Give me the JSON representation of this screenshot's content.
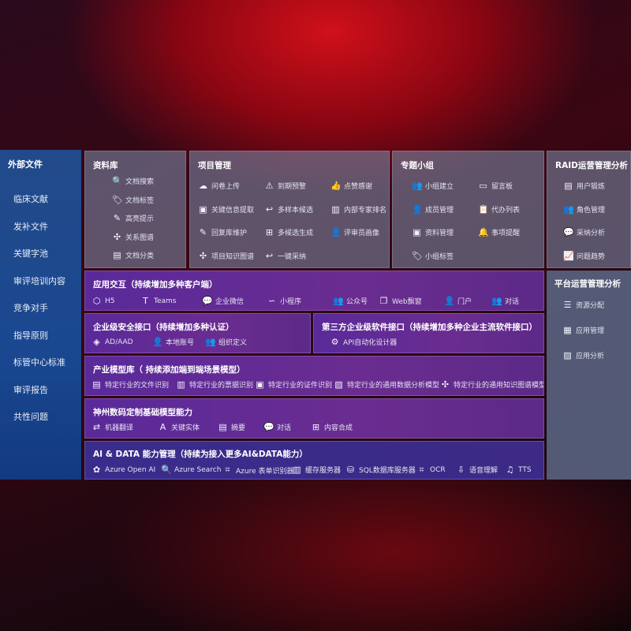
{
  "sidebar": {
    "title": "外部文件",
    "items": [
      "临床文献",
      "发补文件",
      "关键字池",
      "审评培训内容",
      "竞争对手",
      "指导原则",
      "标管中心标准",
      "审评报告",
      "共性问题"
    ]
  },
  "panels": [
    {
      "id": "library",
      "title": "资料库",
      "items": [
        {
          "label": "文档搜索",
          "icon": "document-search-icon",
          "glyph": "🔍"
        },
        {
          "label": "文档标签",
          "icon": "tag-icon",
          "glyph": "🏷"
        },
        {
          "label": "高亮提示",
          "icon": "pen-icon",
          "glyph": "✎"
        },
        {
          "label": "关系图谱",
          "icon": "graph-icon",
          "glyph": "✣"
        },
        {
          "label": "文档分类",
          "icon": "document-stack-icon",
          "glyph": "▤"
        }
      ]
    },
    {
      "id": "project",
      "title": "项目管理",
      "items": [
        {
          "label": "问卷上传",
          "icon": "cloud-upload-icon",
          "glyph": "☁"
        },
        {
          "label": "到期预警",
          "icon": "alarm-icon",
          "glyph": "⚠"
        },
        {
          "label": "点赞感谢",
          "icon": "thumbs-up-icon",
          "glyph": "👍"
        },
        {
          "label": "关键信息提取",
          "icon": "window-icon",
          "glyph": "▣"
        },
        {
          "label": "多样本候选",
          "icon": "reply-icon",
          "glyph": "↩"
        },
        {
          "label": "内部专家排名",
          "icon": "ranking-icon",
          "glyph": "▥"
        },
        {
          "label": "回复库维护",
          "icon": "edit-icon",
          "glyph": "✎"
        },
        {
          "label": "多候选生成",
          "icon": "puzzle-icon",
          "glyph": "⊞"
        },
        {
          "label": "评审员画像",
          "icon": "user-icon",
          "glyph": "👤"
        },
        {
          "label": "项目知识图谱",
          "icon": "graph-icon",
          "glyph": "✣"
        },
        {
          "label": "一键采纳",
          "icon": "reply-icon",
          "glyph": "↩"
        }
      ]
    },
    {
      "id": "group",
      "title": "专题小组",
      "items": [
        {
          "label": "小组建立",
          "icon": "users-icon",
          "glyph": "👥"
        },
        {
          "label": "留言板",
          "icon": "bbs-icon",
          "glyph": "▭"
        },
        {
          "label": "成员管理",
          "icon": "user-add-icon",
          "glyph": "👤"
        },
        {
          "label": "代办列表",
          "icon": "clipboard-icon",
          "glyph": "📋"
        },
        {
          "label": "资料管理",
          "icon": "folder-icon",
          "glyph": "▣"
        },
        {
          "label": "事项提醒",
          "icon": "bell-icon",
          "glyph": "🔔"
        },
        {
          "label": "小组标签",
          "icon": "tag-icon",
          "glyph": "🏷"
        }
      ]
    },
    {
      "id": "raid",
      "title": "RAID运营管理分析",
      "items": [
        {
          "label": "用户锻炼",
          "icon": "id-card-icon",
          "glyph": "▤"
        },
        {
          "label": "角色管理",
          "icon": "users-icon",
          "glyph": "👥"
        },
        {
          "label": "采纳分析",
          "icon": "qa-icon",
          "glyph": "💬"
        },
        {
          "label": "问题趋势",
          "icon": "trend-icon",
          "glyph": "📈"
        }
      ]
    },
    {
      "id": "platform",
      "title": "平台运营管理分析",
      "items": [
        {
          "label": "资源分配",
          "icon": "checklist-icon",
          "glyph": "☰"
        },
        {
          "label": "应用管理",
          "icon": "apps-icon",
          "glyph": "▦"
        },
        {
          "label": "应用分析",
          "icon": "analysis-icon",
          "glyph": "▨"
        }
      ]
    },
    {
      "id": "app",
      "title": "应用交互（持续增加多种客户端）",
      "items": [
        {
          "label": "H5",
          "icon": "html5-icon",
          "glyph": "⬡"
        },
        {
          "label": "Teams",
          "icon": "teams-icon",
          "glyph": "T"
        },
        {
          "label": "企业微信",
          "icon": "wecom-icon",
          "glyph": "💬"
        },
        {
          "label": "小程序",
          "icon": "mini-program-icon",
          "glyph": "∽"
        },
        {
          "label": "公众号",
          "icon": "official-account-icon",
          "glyph": "👥"
        },
        {
          "label": "Web飘窗",
          "icon": "web-window-icon",
          "glyph": "❐"
        },
        {
          "label": "门户",
          "icon": "portal-icon",
          "glyph": "👤"
        },
        {
          "label": "对话",
          "icon": "chat-users-icon",
          "glyph": "👥"
        }
      ]
    },
    {
      "id": "security",
      "title": "企业级安全接口（持续增加多种认证）",
      "items": [
        {
          "label": "AD/AAD",
          "icon": "ad-icon",
          "glyph": "◈"
        },
        {
          "label": "本地账号",
          "icon": "local-account-icon",
          "glyph": "👤"
        },
        {
          "label": "组织定义",
          "icon": "organization-icon",
          "glyph": "👥"
        }
      ]
    },
    {
      "id": "thirdparty",
      "title": "第三方企业级软件接口（持续增加多种企业主流软件接口）",
      "items": [
        {
          "label": "API自动化设计器",
          "icon": "gear-icon",
          "glyph": "⚙"
        }
      ]
    },
    {
      "id": "industry",
      "title": "产业模型库（ 持续添加端到端场景模型）",
      "items": [
        {
          "label": "特定行业的文件识别",
          "icon": "file-icon",
          "glyph": "▤"
        },
        {
          "label": "特定行业的票据识别",
          "icon": "receipt-icon",
          "glyph": "▥"
        },
        {
          "label": "特定行业的证件识别",
          "icon": "id-card-icon",
          "glyph": "▣"
        },
        {
          "label": "特定行业的通用数据分析模型",
          "icon": "chart-icon",
          "glyph": "▨"
        },
        {
          "label": "特定行业的通用知识图谱模型",
          "icon": "graph-icon",
          "glyph": "✣"
        }
      ]
    },
    {
      "id": "base",
      "title": "神州数码定制基础模型能力",
      "items": [
        {
          "label": "机器翻译",
          "icon": "translate-icon",
          "glyph": "⇄"
        },
        {
          "label": "关键实体",
          "icon": "entity-icon",
          "glyph": "A"
        },
        {
          "label": "摘要",
          "icon": "summary-icon",
          "glyph": "▤"
        },
        {
          "label": "对话",
          "icon": "chat-icon",
          "glyph": "💬"
        },
        {
          "label": "内容合成",
          "icon": "puzzle-icon",
          "glyph": "⊞"
        }
      ]
    },
    {
      "id": "aidata",
      "title": "AI & DATA 能力管理（持续为接入更多AI&DATA能力）",
      "items": [
        {
          "label": "Azure Open AI",
          "icon": "openai-icon",
          "glyph": "✿"
        },
        {
          "label": "Azure Search",
          "icon": "search-icon",
          "glyph": "🔍"
        },
        {
          "label": "Azure 表单识别器",
          "icon": "form-recognizer-icon",
          "glyph": "⌗"
        },
        {
          "label": "缓存服务器",
          "icon": "cache-server-icon",
          "glyph": "▥"
        },
        {
          "label": "SQL数据库服务器",
          "icon": "database-icon",
          "glyph": "⛁"
        },
        {
          "label": "OCR",
          "icon": "ocr-icon",
          "glyph": "⌗"
        },
        {
          "label": "语音理解",
          "icon": "speech-icon",
          "glyph": "⇩"
        },
        {
          "label": "TTS",
          "icon": "tts-icon",
          "glyph": "♫"
        }
      ]
    }
  ]
}
